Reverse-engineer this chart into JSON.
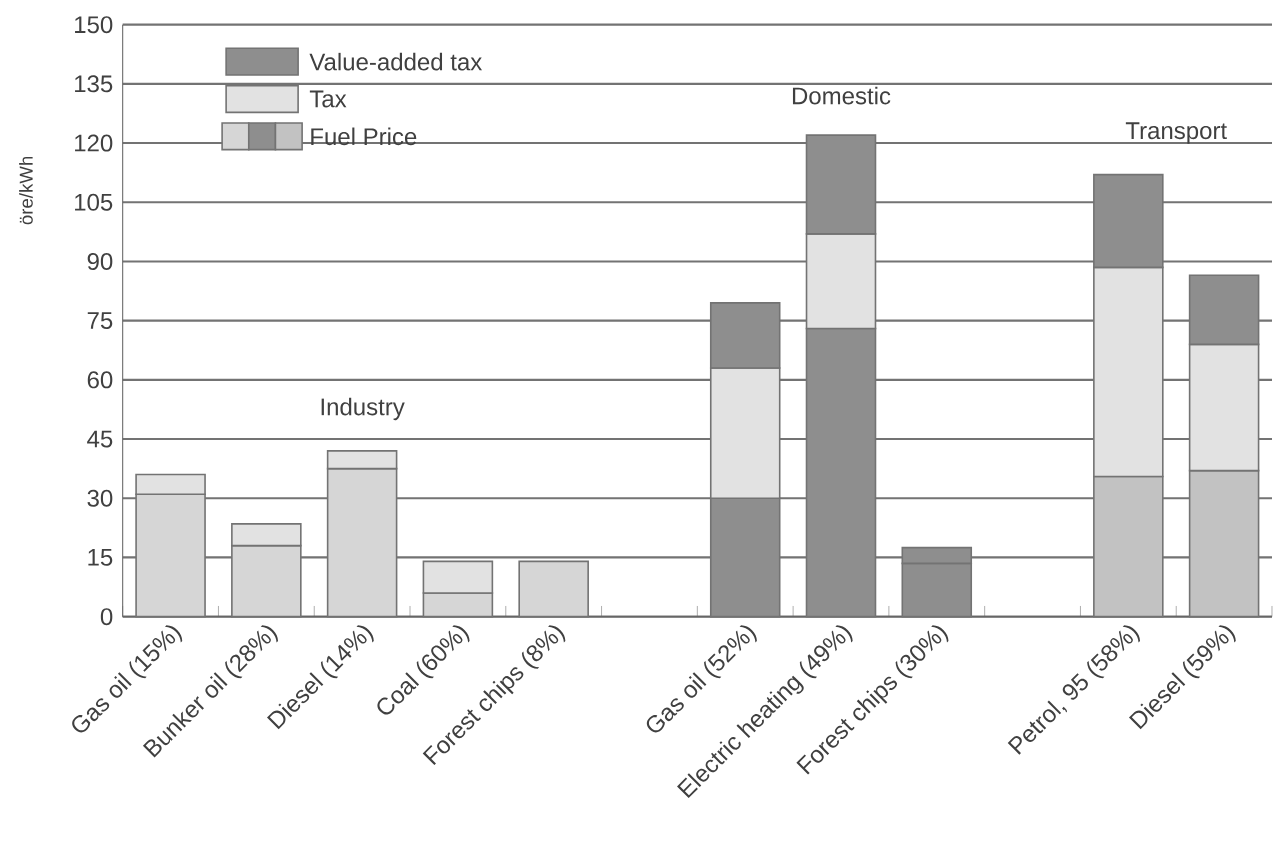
{
  "chart_data": {
    "type": "bar",
    "stacked": true,
    "ylabel": "öre/kWh",
    "categories": [
      "Gas oil (15%)",
      "Bunker oil (28%)",
      "Diesel (14%)",
      "Coal (60%)",
      "Forest chips (8%)",
      null,
      "Gas oil (52%)",
      "Electric heating (49%)",
      "Forest chips (30%)",
      null,
      "Petrol, 95 (58%)",
      "Diesel (59%)"
    ],
    "series": [
      {
        "name": "Fuel Price",
        "colors": [
          "#d6d6d6",
          "#d6d6d6",
          "#d6d6d6",
          "#d6d6d6",
          "#d6d6d6",
          "#d6d6d6",
          "#8e8e8e",
          "#8e8e8e",
          "#8e8e8e",
          "#8e8e8e",
          "#c2c2c2",
          "#c2c2c2"
        ],
        "values": [
          31,
          18,
          37.5,
          6,
          14,
          null,
          30,
          73,
          13.5,
          null,
          35.5,
          37
        ]
      },
      {
        "name": "Tax",
        "color": "#e2e2e2",
        "values": [
          5,
          5.5,
          4.5,
          8,
          0,
          null,
          33,
          24,
          0,
          null,
          53,
          32
        ]
      },
      {
        "name": "Value-added tax",
        "color": "#8e8e8e",
        "values": [
          0,
          0,
          0,
          0,
          0,
          null,
          16.5,
          25,
          4,
          null,
          23.5,
          17.5
        ]
      }
    ],
    "ylim": [
      0,
      150
    ],
    "yticks": [
      0,
      15,
      30,
      45,
      60,
      75,
      90,
      105,
      120,
      135,
      150
    ],
    "grid": "y",
    "legend": "top left",
    "annotations": [
      "Industry",
      "Domestic",
      "Transport"
    ]
  }
}
